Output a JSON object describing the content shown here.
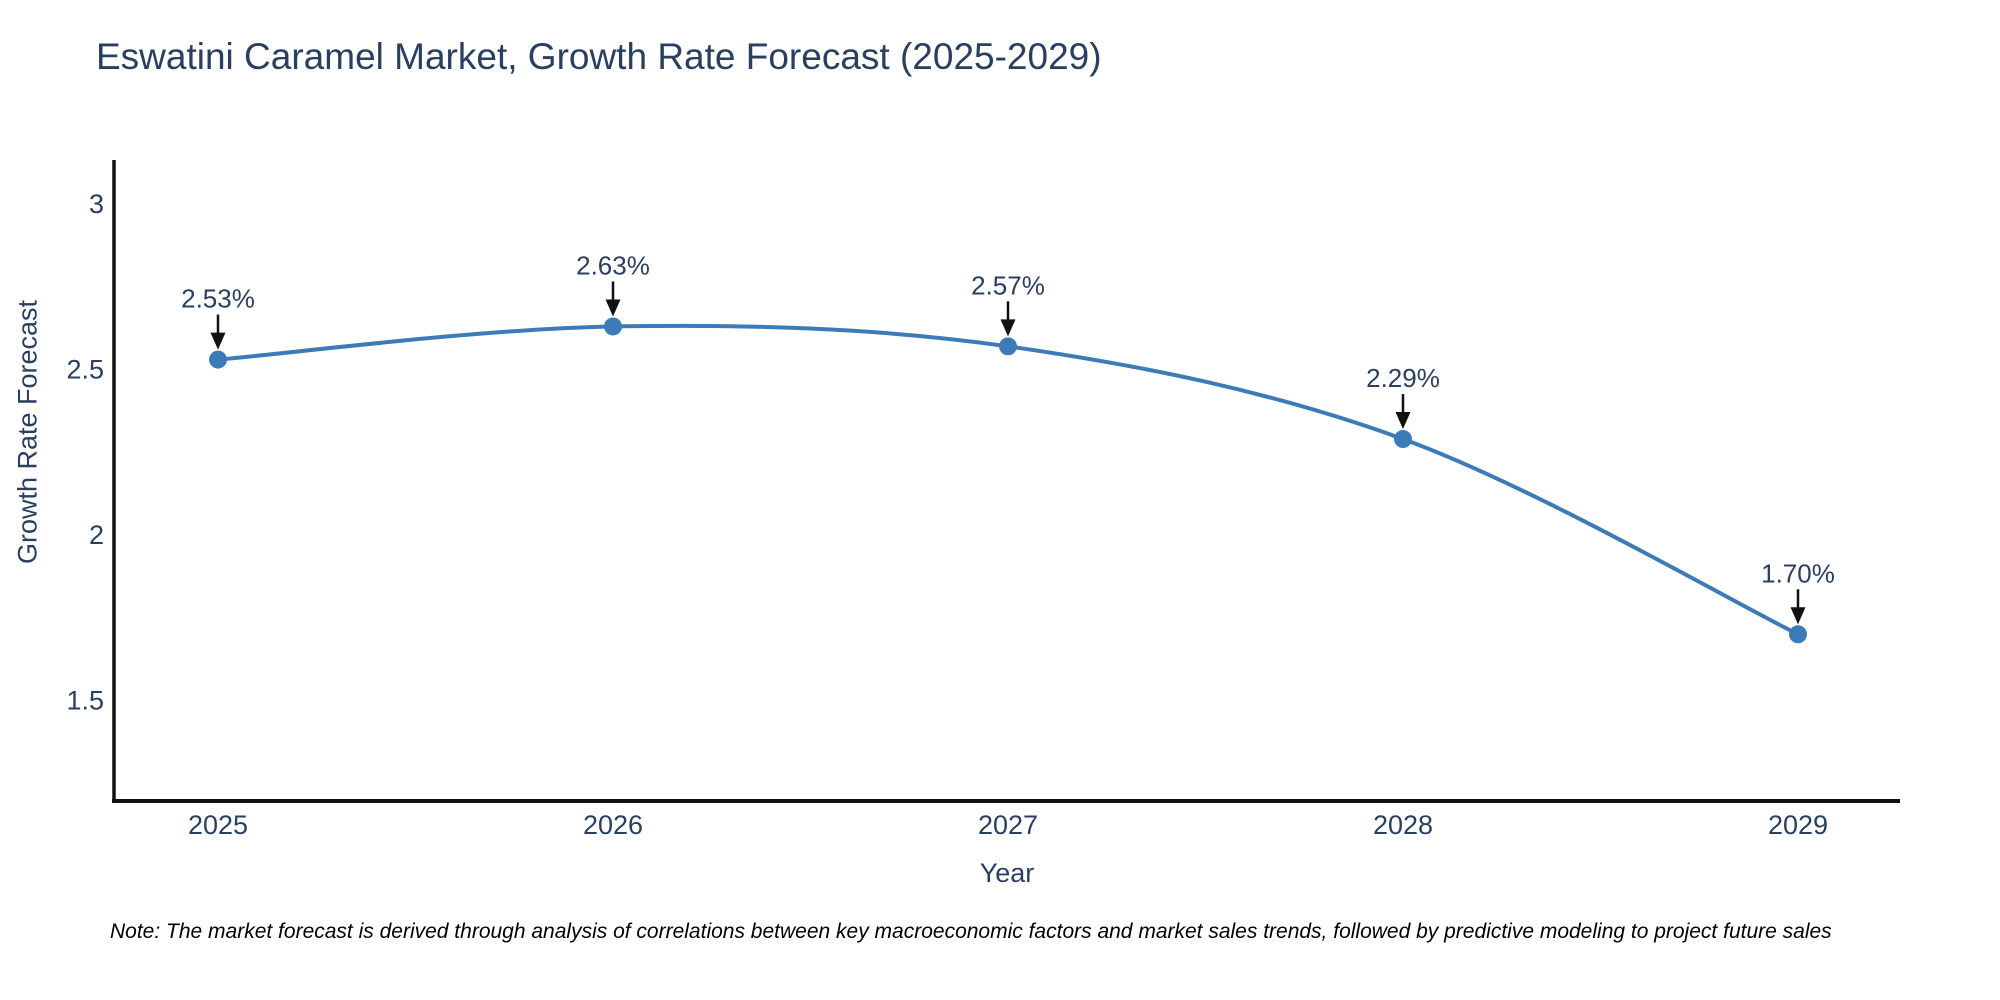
{
  "chart_data": {
    "type": "line",
    "title": "Eswatini Caramel Market, Growth Rate Forecast (2025-2029)",
    "xlabel": "Year",
    "ylabel": "Growth Rate Forecast",
    "x": [
      2025,
      2026,
      2027,
      2028,
      2029
    ],
    "series": [
      {
        "name": "Growth Rate Forecast",
        "values": [
          2.53,
          2.63,
          2.57,
          2.29,
          1.7
        ]
      }
    ],
    "point_labels": [
      "2.53%",
      "2.63%",
      "2.57%",
      "2.29%",
      "1.70%"
    ],
    "xticks": [
      "2025",
      "2026",
      "2027",
      "2028",
      "2029"
    ],
    "yticks": [
      1.5,
      2,
      2.5,
      3
    ],
    "ytick_labels": [
      "1.5",
      "2",
      "2.5",
      "3"
    ],
    "ylim": [
      1.2,
      3.13
    ],
    "xlim": [
      2024.73,
      2029.26
    ],
    "grid": false,
    "legend": "none",
    "curve": "spline",
    "line_color": "#3d7bb8",
    "marker_color": "#3d7bb8",
    "arrow_color": "#111111",
    "axis_color": "#111111",
    "text_color": "#2a3f5f"
  },
  "footnote": "Note: The market forecast is derived through analysis of correlations between key macroeconomic factors and market sales trends, followed by predictive modeling to project future sales"
}
